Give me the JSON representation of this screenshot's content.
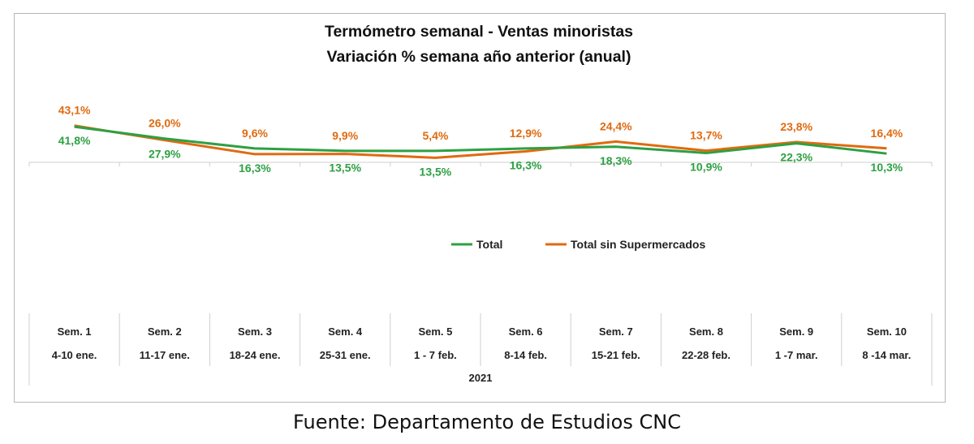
{
  "source": "Fuente: Departamento de Estudios CNC",
  "chart_data": {
    "type": "line",
    "title": "Termómetro semanal - Ventas minoristas",
    "subtitle": "Variación % semana año anterior (anual)",
    "categories": [
      [
        "Sem. 1",
        "4-10 ene."
      ],
      [
        "Sem. 2",
        "11-17 ene."
      ],
      [
        "Sem. 3",
        "18-24 ene."
      ],
      [
        "Sem. 4",
        "25-31 ene."
      ],
      [
        "Sem. 5",
        "1 - 7 feb."
      ],
      [
        "Sem. 6",
        "8-14 feb."
      ],
      [
        "Sem. 7",
        "15-21 feb."
      ],
      [
        "Sem. 8",
        "22-28 feb."
      ],
      [
        "Sem. 9",
        "1 -7 mar."
      ],
      [
        "Sem. 10",
        "8 -14 mar."
      ]
    ],
    "group_label": "2021",
    "series": [
      {
        "name": "Total",
        "color": "#2ea043",
        "values": [
          41.8,
          27.9,
          16.3,
          13.5,
          13.5,
          16.3,
          18.3,
          10.9,
          22.3,
          10.3
        ],
        "labels": [
          "41,8%",
          "27,9%",
          "16,3%",
          "13,5%",
          "13,5%",
          "16,3%",
          "18,3%",
          "10,9%",
          "22,3%",
          "10,3%"
        ]
      },
      {
        "name": "Total sin Supermercados",
        "color": "#e06a10",
        "values": [
          43.1,
          26.0,
          9.6,
          9.9,
          5.4,
          12.9,
          24.4,
          13.7,
          23.8,
          16.4
        ],
        "labels": [
          "43,1%",
          "26,0%",
          "9,6%",
          "9,9%",
          "5,4%",
          "12,9%",
          "24,4%",
          "13,7%",
          "23,8%",
          "16,4%"
        ]
      }
    ],
    "legend_position": "middle-center",
    "grid": false
  }
}
